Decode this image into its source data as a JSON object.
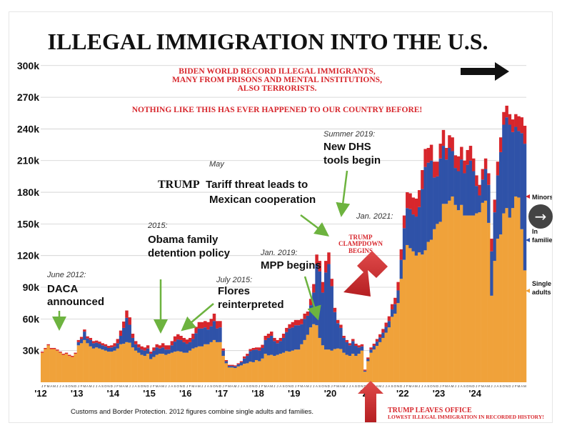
{
  "chart_data": {
    "type": "bar",
    "stacked": true,
    "title": "ILLEGAL IMMIGRATION INTO THE U.S.",
    "ylim": [
      0,
      310000
    ],
    "y_ticks": [
      {
        "value": 30000,
        "label": "30k"
      },
      {
        "value": 60000,
        "label": "60k"
      },
      {
        "value": 90000,
        "label": "90k"
      },
      {
        "value": 120000,
        "label": "120k"
      },
      {
        "value": 150000,
        "label": "150k"
      },
      {
        "value": 180000,
        "label": "180k"
      },
      {
        "value": 210000,
        "label": "210k"
      },
      {
        "value": 240000,
        "label": "240k"
      },
      {
        "value": 270000,
        "label": "270k"
      },
      {
        "value": 300000,
        "label": "300k"
      }
    ],
    "year_labels": [
      "'12",
      "'13",
      "'14",
      "'15",
      "'16",
      "'17",
      "'18",
      "'19",
      "'20",
      "'21",
      "'22",
      "'23",
      "'24"
    ],
    "month_letters": [
      "J",
      "F",
      "M",
      "A",
      "M",
      "J",
      "J",
      "A",
      "S",
      "O",
      "N",
      "D"
    ],
    "series": [
      {
        "name": "Single adults",
        "color": "#f0a23a",
        "values": [
          28000,
          31500,
          35000,
          31500,
          31500,
          30000,
          28000,
          26000,
          27000,
          25000,
          24000,
          27000,
          35000,
          37000,
          40000,
          37000,
          34000,
          32000,
          33000,
          32000,
          31000,
          30000,
          29000,
          29000,
          30000,
          32000,
          36000,
          36500,
          38000,
          37500,
          33000,
          30000,
          28000,
          26000,
          25000,
          27000,
          22000,
          24000,
          26000,
          27000,
          27000,
          26000,
          27000,
          28000,
          29000,
          29500,
          29000,
          28000,
          28000,
          30000,
          32000,
          33000,
          34000,
          34000,
          36000,
          36000,
          38000,
          40000,
          38000,
          38000,
          25000,
          18000,
          14000,
          14000,
          13500,
          15000,
          16000,
          17500,
          18000,
          19500,
          19000,
          21000,
          20000,
          22500,
          27000,
          25500,
          26000,
          25000,
          26000,
          27000,
          28000,
          29500,
          29000,
          30000,
          31000,
          31000,
          36000,
          40000,
          45000,
          52000,
          55000,
          54000,
          42000,
          35000,
          31000,
          31000,
          30000,
          31500,
          32000,
          31500,
          28000,
          26000,
          25000,
          27000,
          25000,
          27000,
          30000,
          10000,
          20000,
          28000,
          31000,
          34500,
          38000,
          42000,
          47000,
          52000,
          62000,
          65000,
          75000,
          98000,
          116000,
          130000,
          127000,
          124000,
          120000,
          123000,
          121000,
          125000,
          133000,
          135000,
          145000,
          150000,
          152000,
          169000,
          169000,
          172000,
          176000,
          168000,
          163000,
          168000,
          158000,
          158000,
          158000,
          158000,
          160000,
          161000,
          170000,
          172000,
          151000,
          82000,
          115000,
          136000,
          140000,
          160000,
          165000,
          156000,
          165000,
          176000,
          175000,
          145000,
          106000
        ],
        "legend_label": "Single\nadults"
      },
      {
        "name": "In families",
        "color": "#2f52a8",
        "values": [
          0,
          0,
          0,
          0,
          0,
          0,
          0,
          0,
          0,
          0,
          0,
          0,
          3000,
          4000,
          8000,
          4500,
          6000,
          5000,
          4500,
          4500,
          4000,
          4000,
          3500,
          4000,
          4000,
          5000,
          8000,
          15000,
          23000,
          17000,
          9000,
          6000,
          5000,
          5000,
          5000,
          5000,
          5000,
          6000,
          7000,
          5000,
          6000,
          5000,
          4000,
          7000,
          9500,
          11000,
          11000,
          10000,
          8500,
          8000,
          9000,
          13500,
          17000,
          17000,
          16000,
          14000,
          15000,
          18000,
          13000,
          14000,
          5000,
          2000,
          1500,
          1500,
          1500,
          2000,
          3000,
          5000,
          7000,
          10000,
          11500,
          10000,
          10000,
          10000,
          13000,
          16500,
          18000,
          14000,
          11000,
          12000,
          14000,
          18000,
          22000,
          22000,
          23000,
          23000,
          19000,
          20000,
          18000,
          21000,
          30000,
          58000,
          63000,
          50000,
          73000,
          81000,
          61000,
          35000,
          24000,
          20000,
          14000,
          12000,
          10000,
          12000,
          9500,
          6000,
          4000,
          1000,
          2000,
          3000,
          3500,
          4000,
          4500,
          5000,
          5500,
          6000,
          7000,
          9000,
          12000,
          18000,
          30000,
          35000,
          37000,
          35000,
          37000,
          43000,
          62000,
          79000,
          75000,
          75000,
          49000,
          45000,
          60000,
          55000,
          42000,
          50000,
          43000,
          35000,
          37000,
          43000,
          40000,
          48000,
          52000,
          42000,
          26000,
          16000,
          22000,
          30000,
          36000,
          42000,
          46000,
          60000,
          78000,
          84000,
          86000,
          88000,
          72000,
          66000,
          63000,
          91000,
          120000,
          91000,
          40000,
          46000,
          36000
        ],
        "legend_label": "In\nfamilies"
      },
      {
        "name": "Minors",
        "color": "#d7262c",
        "values": [
          1000,
          1000,
          1000,
          1000,
          1000,
          1000,
          1000,
          1000,
          1000,
          1000,
          1000,
          1000,
          2000,
          2000,
          2000,
          2000,
          2000,
          2000,
          2000,
          2000,
          2000,
          2000,
          2000,
          2000,
          3000,
          4000,
          5000,
          6000,
          7000,
          7000,
          4000,
          3000,
          3000,
          3000,
          3000,
          3000,
          2000,
          3000,
          3000,
          3000,
          4000,
          4000,
          4000,
          4000,
          5000,
          5000,
          4000,
          4000,
          4000,
          4000,
          5000,
          6000,
          6000,
          6000,
          6000,
          7000,
          7000,
          7000,
          7000,
          6000,
          2000,
          1000,
          1000,
          1000,
          1000,
          1000,
          1000,
          2000,
          2000,
          2000,
          2000,
          2000,
          3000,
          3000,
          4000,
          4000,
          4000,
          3000,
          3000,
          3000,
          4000,
          4000,
          4000,
          5000,
          5000,
          5000,
          5000,
          5000,
          4000,
          6000,
          8000,
          9000,
          10000,
          10000,
          11000,
          11000,
          7000,
          4000,
          3000,
          3000,
          2000,
          2000,
          2000,
          2000,
          2000,
          2000,
          2000,
          1000,
          1500,
          2000,
          2000,
          2500,
          3000,
          3500,
          4000,
          4500,
          5000,
          6000,
          8000,
          10000,
          12000,
          15000,
          15000,
          16000,
          17000,
          16000,
          18000,
          17000,
          14000,
          15000,
          15000,
          14000,
          14000,
          15000,
          11000,
          12000,
          13000,
          12000,
          14000,
          12000,
          12000,
          14000,
          14000,
          12000,
          10000,
          10000,
          10000,
          10000,
          11000,
          12000,
          12000,
          13000,
          14000,
          12000,
          11000,
          10000,
          12000,
          12000,
          14000,
          15000,
          17000,
          8000,
          9000,
          8000,
          7000
        ],
        "legend_label": "Minors"
      }
    ]
  },
  "headline": "ILLEGAL IMMIGRATION INTO THE U.S.",
  "biden_notes": [
    "BIDEN WORLD RECORD ILLEGAL IMMIGRANTS,",
    "MANY FROM PRISONS AND MENTAL INSTITUTIONS,",
    "ALSO TERRORISTS."
  ],
  "nothing_like": "NOTHING LIKE THIS HAS EVER HAPPENED TO OUR COUNTRY BEFORE!",
  "annotations": {
    "daca_date": "June 2012:",
    "daca_1": "DACA",
    "daca_2": "announced",
    "obama_date": "2015:",
    "obama_1": "Obama family",
    "obama_2": "detention policy",
    "flores_date": "July 2015:",
    "flores_1": "Flores",
    "flores_2": "reinterpreted",
    "may": "May",
    "tariff_trump": "TRUMP",
    "tariff_1": "Tariff threat leads to",
    "tariff_2": "Mexican cooperation",
    "dhs_date": "Summer 2019:",
    "dhs_1": "New DHS",
    "dhs_2": "tools begin",
    "mpp_date": "Jan. 2019:",
    "mpp_1": "MPP begins",
    "jan2021": "Jan. 2021:",
    "clampdown_1": "TRUMP",
    "clampdown_2": "CLAMPDOWN",
    "clampdown_3": "BEGINS",
    "leaves_office": "TRUMP LEAVES OFFICE",
    "lowest": "LOWEST ILLEGAL IMMIGRATION IN RECORDED HISTORY!"
  },
  "source_note": "Customs and Border Protection. 2012 figures combine single adults and families.",
  "next_button_icon": "→",
  "colors": {
    "single": "#f0a23a",
    "families": "#2f52a8",
    "minors": "#d7262c",
    "annotation_red": "#d7262c",
    "arrow_green": "#6db33f"
  }
}
